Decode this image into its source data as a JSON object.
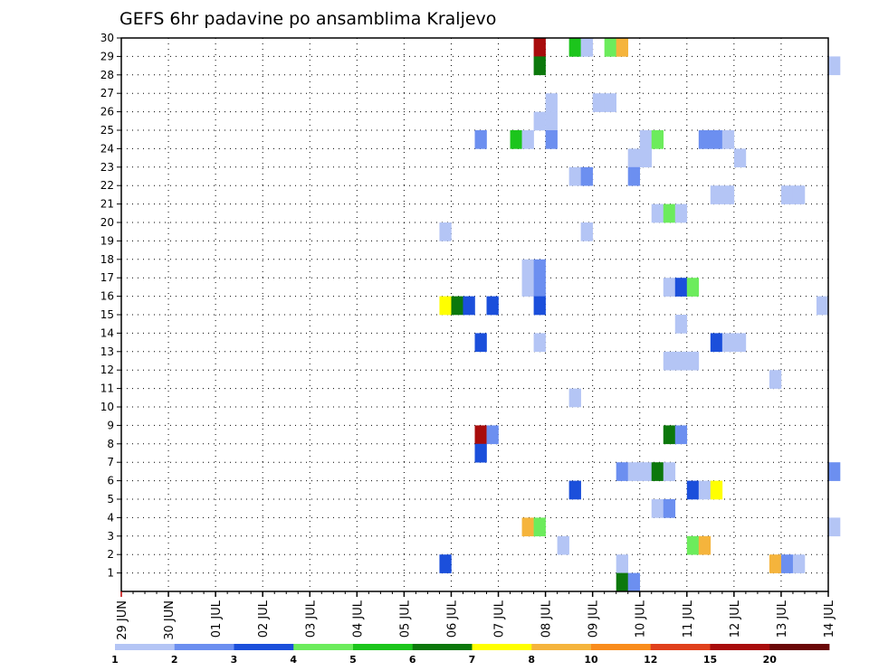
{
  "chart_data": {
    "type": "heatmap",
    "title": "GEFS 6hr padavine po ansamblima Kraljevo",
    "y_ticks": [
      "1",
      "2",
      "3",
      "4",
      "5",
      "6",
      "7",
      "8",
      "9",
      "10",
      "11",
      "12",
      "13",
      "14",
      "15",
      "16",
      "17",
      "18",
      "19",
      "20",
      "21",
      "22",
      "23",
      "24",
      "25",
      "26",
      "27",
      "28",
      "29",
      "30"
    ],
    "ylim": [
      0,
      30
    ],
    "x_ticks": [
      "29 JUN",
      "30 JUN",
      "01 JUL",
      "02 JUL",
      "03 JUL",
      "04 JUL",
      "05 JUL",
      "06 JUL",
      "07 JUL",
      "08 JUL",
      "09 JUL",
      "10 JUL",
      "11 JUL",
      "12 JUL",
      "13 JUL",
      "14 JUL"
    ],
    "time_step_hours": 6,
    "grid": true,
    "color_levels": [
      "1",
      "2",
      "3",
      "4",
      "5",
      "6",
      "7",
      "8",
      "10",
      "12",
      "15",
      "20"
    ],
    "colors": [
      "#b4c5f5",
      "#6c8ff0",
      "#1b4fdb",
      "#6cec5c",
      "#1cc51c",
      "#0c780c",
      "#ffff00",
      "#f5b43c",
      "#f98c1c",
      "#e0401c",
      "#a80c0c",
      "#6a0808"
    ],
    "cells": [
      {
        "member": 29,
        "from": "07 JUL 18",
        "bin": 10
      },
      {
        "member": 29,
        "from": "08 JUL 12",
        "bin": 4
      },
      {
        "member": 29,
        "from": "08 JUL 18",
        "bin": 0
      },
      {
        "member": 29,
        "from": "09 JUL 06",
        "bin": 3
      },
      {
        "member": 29,
        "from": "09 JUL 12",
        "bin": 7
      },
      {
        "member": 28,
        "from": "07 JUL 18",
        "bin": 5
      },
      {
        "member": 28,
        "from": "14 JUL 00",
        "bin": 0
      },
      {
        "member": 26,
        "from": "08 JUL 00",
        "bin": 0
      },
      {
        "member": 26,
        "from": "09 JUL 00",
        "bin": 0
      },
      {
        "member": 26,
        "from": "09 JUL 06",
        "bin": 0
      },
      {
        "member": 25,
        "from": "07 JUL 18",
        "bin": 0
      },
      {
        "member": 25,
        "from": "08 JUL 00",
        "bin": 0
      },
      {
        "member": 24,
        "from": "06 JUL 12",
        "bin": 1
      },
      {
        "member": 24,
        "from": "07 JUL 06",
        "bin": 4
      },
      {
        "member": 24,
        "from": "07 JUL 12",
        "bin": 0
      },
      {
        "member": 24,
        "from": "08 JUL 00",
        "bin": 1
      },
      {
        "member": 24,
        "from": "10 JUL 00",
        "bin": 0
      },
      {
        "member": 24,
        "from": "10 JUL 06",
        "bin": 3
      },
      {
        "member": 24,
        "from": "11 JUL 06",
        "bin": 1
      },
      {
        "member": 24,
        "from": "11 JUL 12",
        "bin": 1
      },
      {
        "member": 24,
        "from": "11 JUL 18",
        "bin": 0
      },
      {
        "member": 23,
        "from": "09 JUL 18",
        "bin": 0
      },
      {
        "member": 23,
        "from": "10 JUL 00",
        "bin": 0
      },
      {
        "member": 23,
        "from": "12 JUL 00",
        "bin": 0
      },
      {
        "member": 22,
        "from": "08 JUL 12",
        "bin": 0
      },
      {
        "member": 22,
        "from": "08 JUL 18",
        "bin": 1
      },
      {
        "member": 22,
        "from": "09 JUL 18",
        "bin": 1
      },
      {
        "member": 21,
        "from": "11 JUL 12",
        "bin": 0
      },
      {
        "member": 21,
        "from": "11 JUL 18",
        "bin": 0
      },
      {
        "member": 21,
        "from": "13 JUL 00",
        "bin": 0
      },
      {
        "member": 21,
        "from": "13 JUL 06",
        "bin": 0
      },
      {
        "member": 20,
        "from": "10 JUL 06",
        "bin": 0
      },
      {
        "member": 20,
        "from": "10 JUL 12",
        "bin": 3
      },
      {
        "member": 20,
        "from": "10 JUL 18",
        "bin": 0
      },
      {
        "member": 19,
        "from": "05 JUL 18",
        "bin": 0
      },
      {
        "member": 19,
        "from": "08 JUL 18",
        "bin": 0
      },
      {
        "member": 17,
        "from": "07 JUL 12",
        "bin": 0
      },
      {
        "member": 17,
        "from": "07 JUL 18",
        "bin": 1
      },
      {
        "member": 16,
        "from": "07 JUL 12",
        "bin": 0
      },
      {
        "member": 16,
        "from": "07 JUL 18",
        "bin": 1
      },
      {
        "member": 16,
        "from": "10 JUL 12",
        "bin": 0
      },
      {
        "member": 16,
        "from": "10 JUL 18",
        "bin": 2
      },
      {
        "member": 16,
        "from": "11 JUL 00",
        "bin": 3
      },
      {
        "member": 15,
        "from": "05 JUL 18",
        "bin": 6
      },
      {
        "member": 15,
        "from": "06 JUL 00",
        "bin": 5
      },
      {
        "member": 15,
        "from": "06 JUL 06",
        "bin": 2
      },
      {
        "member": 15,
        "from": "06 JUL 18",
        "bin": 2
      },
      {
        "member": 15,
        "from": "07 JUL 18",
        "bin": 2
      },
      {
        "member": 15,
        "from": "13 JUL 18",
        "bin": 0
      },
      {
        "member": 14,
        "from": "10 JUL 18",
        "bin": 0
      },
      {
        "member": 13,
        "from": "06 JUL 12",
        "bin": 2
      },
      {
        "member": 13,
        "from": "07 JUL 18",
        "bin": 0
      },
      {
        "member": 13,
        "from": "11 JUL 12",
        "bin": 2
      },
      {
        "member": 13,
        "from": "11 JUL 18",
        "bin": 0
      },
      {
        "member": 13,
        "from": "12 JUL 00",
        "bin": 0
      },
      {
        "member": 12,
        "from": "10 JUL 12",
        "bin": 0
      },
      {
        "member": 12,
        "from": "10 JUL 18",
        "bin": 0
      },
      {
        "member": 12,
        "from": "11 JUL 00",
        "bin": 0
      },
      {
        "member": 11,
        "from": "12 JUL 18",
        "bin": 0
      },
      {
        "member": 10,
        "from": "08 JUL 12",
        "bin": 0
      },
      {
        "member": 8,
        "from": "06 JUL 12",
        "bin": 10
      },
      {
        "member": 8,
        "from": "06 JUL 18",
        "bin": 1
      },
      {
        "member": 8,
        "from": "10 JUL 12",
        "bin": 5
      },
      {
        "member": 8,
        "from": "10 JUL 18",
        "bin": 1
      },
      {
        "member": 7,
        "from": "06 JUL 12",
        "bin": 2
      },
      {
        "member": 6,
        "from": "09 JUL 12",
        "bin": 1
      },
      {
        "member": 6,
        "from": "09 JUL 18",
        "bin": 0
      },
      {
        "member": 6,
        "from": "10 JUL 00",
        "bin": 0
      },
      {
        "member": 6,
        "from": "10 JUL 06",
        "bin": 5
      },
      {
        "member": 6,
        "from": "10 JUL 12",
        "bin": 0
      },
      {
        "member": 6,
        "from": "14 JUL 00",
        "bin": 1
      },
      {
        "member": 5,
        "from": "08 JUL 12",
        "bin": 2
      },
      {
        "member": 5,
        "from": "11 JUL 00",
        "bin": 2
      },
      {
        "member": 5,
        "from": "11 JUL 06",
        "bin": 0
      },
      {
        "member": 5,
        "from": "11 JUL 12",
        "bin": 6
      },
      {
        "member": 4,
        "from": "10 JUL 06",
        "bin": 0
      },
      {
        "member": 4,
        "from": "10 JUL 12",
        "bin": 1
      },
      {
        "member": 3,
        "from": "07 JUL 12",
        "bin": 7
      },
      {
        "member": 3,
        "from": "07 JUL 18",
        "bin": 3
      },
      {
        "member": 3,
        "from": "14 JUL 00",
        "bin": 0
      },
      {
        "member": 2,
        "from": "08 JUL 06",
        "bin": 0
      },
      {
        "member": 2,
        "from": "11 JUL 00",
        "bin": 3
      },
      {
        "member": 2,
        "from": "11 JUL 06",
        "bin": 7
      },
      {
        "member": 1,
        "from": "05 JUL 18",
        "bin": 2
      },
      {
        "member": 1,
        "from": "09 JUL 12",
        "bin": 0
      },
      {
        "member": 1,
        "from": "12 JUL 18",
        "bin": 7
      },
      {
        "member": 1,
        "from": "13 JUL 00",
        "bin": 1
      },
      {
        "member": 1,
        "from": "13 JUL 06",
        "bin": 0
      },
      {
        "member": 0,
        "from": "09 JUL 12",
        "bin": 5
      },
      {
        "member": 0,
        "from": "09 JUL 18",
        "bin": 1
      }
    ]
  }
}
